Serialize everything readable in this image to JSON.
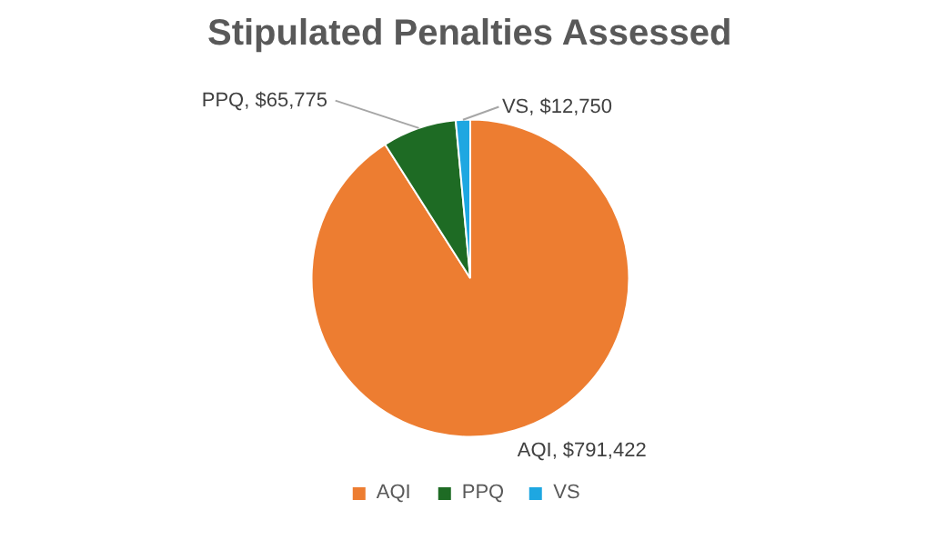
{
  "chart_data": {
    "type": "pie",
    "title": "Stipulated Penalties Assessed",
    "categories": [
      "AQI",
      "PPQ",
      "VS"
    ],
    "values": [
      791422,
      65775,
      12750
    ],
    "colors": [
      "#ed7d31",
      "#1e6b24",
      "#1ea7e1"
    ],
    "value_labels": [
      "AQI, $791,422",
      "PPQ, $65,775",
      "VS, $12,750"
    ],
    "legend": "bottom"
  }
}
